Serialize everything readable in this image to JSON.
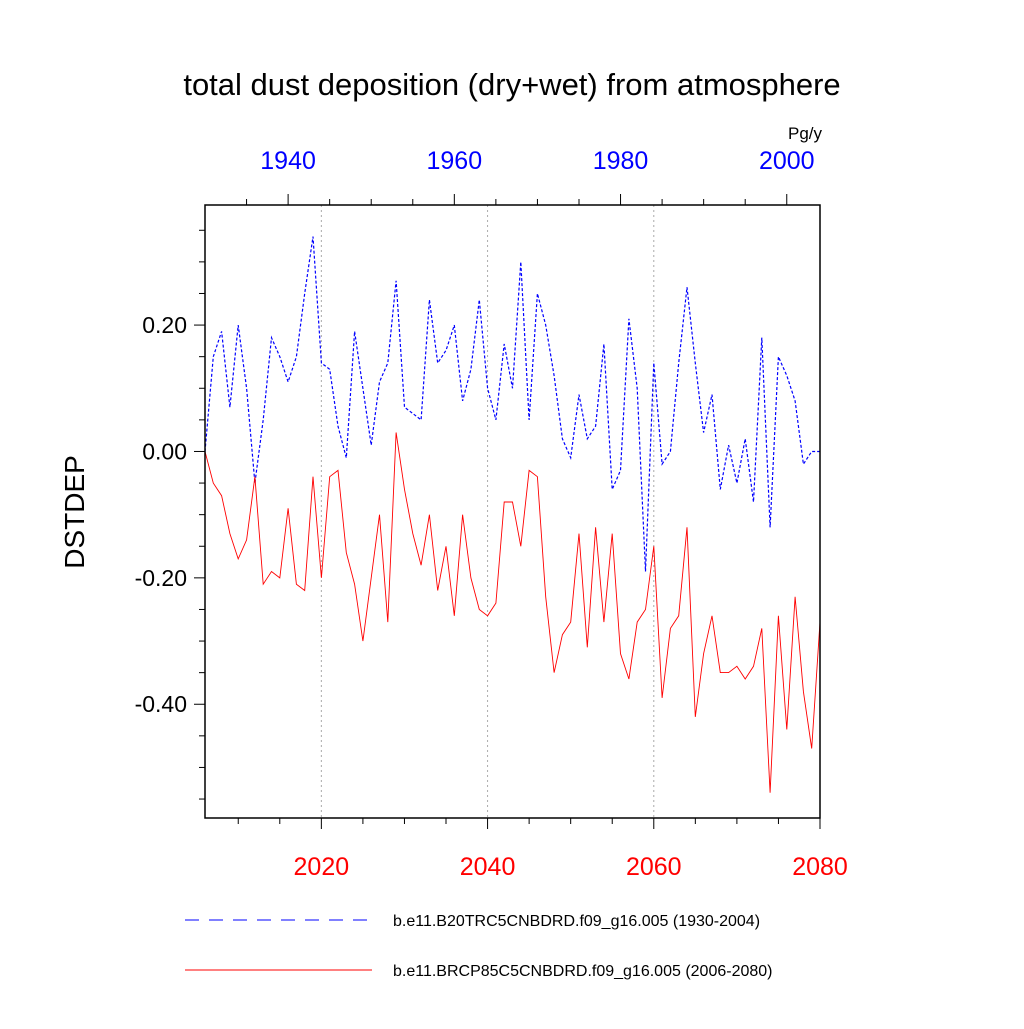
{
  "chart_data": {
    "type": "line",
    "title": "total dust deposition (dry+wet) from atmosphere",
    "ylabel": "DSTDEP",
    "units": "Pg/y",
    "ylim": [
      -0.58,
      0.39
    ],
    "y_ticks": [
      -0.4,
      -0.2,
      0.0,
      0.2
    ],
    "y_tick_labels": [
      "-0.40",
      "-0.20",
      "0.00",
      "0.20"
    ],
    "x_bottom": {
      "range": [
        2006,
        2080
      ],
      "ticks": [
        2020,
        2040,
        2060,
        2080
      ],
      "tick_labels": [
        "2020",
        "2040",
        "2060",
        "2080"
      ],
      "color": "#ff0000"
    },
    "x_top": {
      "range": [
        1930,
        2004
      ],
      "ticks": [
        1940,
        1960,
        1980,
        2000
      ],
      "tick_labels": [
        "1940",
        "1960",
        "1980",
        "2000"
      ],
      "color": "#0000ff"
    },
    "gridlines_bottom_x": [
      2020,
      2040,
      2060
    ],
    "series": [
      {
        "name": "b.e11.B20TRC5CNBDRD.f09_g16.005 (1930-2004)",
        "axis": "top",
        "color": "#0000ff",
        "dash": "dashed",
        "x_start": 1930,
        "values": [
          0.0,
          0.15,
          0.19,
          0.07,
          0.2,
          0.1,
          -0.05,
          0.05,
          0.18,
          0.15,
          0.11,
          0.15,
          0.25,
          0.34,
          0.14,
          0.13,
          0.04,
          -0.01,
          0.19,
          0.1,
          0.01,
          0.11,
          0.14,
          0.27,
          0.07,
          0.06,
          0.05,
          0.24,
          0.14,
          0.16,
          0.2,
          0.08,
          0.13,
          0.24,
          0.1,
          0.05,
          0.17,
          0.1,
          0.3,
          0.05,
          0.25,
          0.2,
          0.12,
          0.02,
          -0.01,
          0.09,
          0.02,
          0.04,
          0.17,
          -0.06,
          -0.03,
          0.21,
          0.1,
          -0.19,
          0.14,
          -0.02,
          0.0,
          0.14,
          0.26,
          0.14,
          0.03,
          0.09,
          -0.06,
          0.01,
          -0.05,
          0.02,
          -0.08,
          0.18,
          -0.12,
          0.15,
          0.12,
          0.08,
          -0.02,
          0.0,
          0.0
        ]
      },
      {
        "name": "b.e11.BRCP85C5CNBDRD.f09_g16.005 (2006-2080)",
        "axis": "bottom",
        "color": "#ff0000",
        "dash": "solid",
        "x_start": 2006,
        "values": [
          0.0,
          -0.05,
          -0.07,
          -0.13,
          -0.17,
          -0.14,
          -0.04,
          -0.21,
          -0.19,
          -0.2,
          -0.09,
          -0.21,
          -0.22,
          -0.04,
          -0.2,
          -0.04,
          -0.03,
          -0.16,
          -0.21,
          -0.3,
          -0.2,
          -0.1,
          -0.27,
          0.03,
          -0.06,
          -0.13,
          -0.18,
          -0.1,
          -0.22,
          -0.15,
          -0.26,
          -0.1,
          -0.2,
          -0.25,
          -0.26,
          -0.24,
          -0.08,
          -0.08,
          -0.15,
          -0.03,
          -0.04,
          -0.23,
          -0.35,
          -0.29,
          -0.27,
          -0.13,
          -0.31,
          -0.12,
          -0.27,
          -0.13,
          -0.32,
          -0.36,
          -0.27,
          -0.25,
          -0.15,
          -0.39,
          -0.28,
          -0.26,
          -0.12,
          -0.42,
          -0.32,
          -0.26,
          -0.35,
          -0.35,
          -0.34,
          -0.36,
          -0.34,
          -0.28,
          -0.54,
          -0.26,
          -0.44,
          -0.23,
          -0.38,
          -0.47,
          -0.27
        ]
      }
    ]
  }
}
